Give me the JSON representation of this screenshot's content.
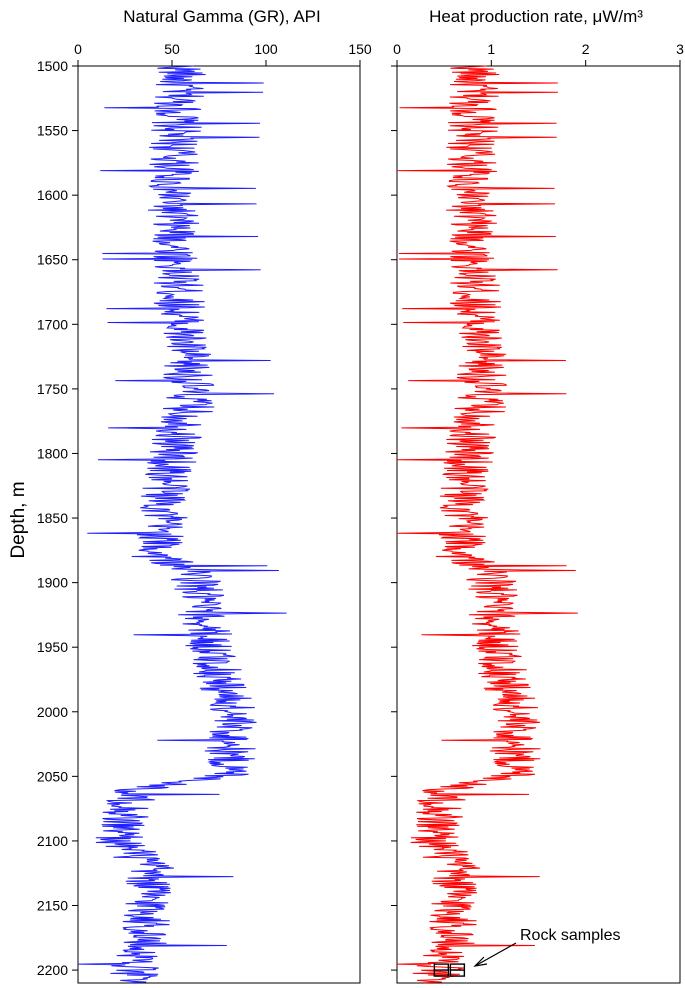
{
  "chart_data": [
    {
      "type": "line",
      "title": "Natural Gamma (GR), API",
      "ylabel": "Depth, m",
      "xlim": [
        0,
        150
      ],
      "ylim": [
        1500,
        2210
      ],
      "y_inverted": true,
      "x_axis_position": "top",
      "xticks": [
        "0",
        "50",
        "100",
        "150"
      ],
      "yticks": [
        "1500",
        "1550",
        "1600",
        "1650",
        "1700",
        "1750",
        "1800",
        "1850",
        "1900",
        "1950",
        "2000",
        "2050",
        "2100",
        "2150",
        "2200"
      ],
      "color": "#1f1fff",
      "series": [
        {
          "depth": [
            1500,
            1550,
            1600,
            1650,
            1700,
            1730,
            1760,
            1800,
            1850,
            1880,
            1890,
            1950,
            2000,
            2050,
            2060,
            2080,
            2100,
            2120,
            2150,
            2180,
            2200,
            2210
          ],
          "values": [
            55,
            52,
            50,
            52,
            55,
            58,
            60,
            50,
            45,
            42,
            62,
            70,
            82,
            80,
            32,
            25,
            22,
            38,
            38,
            35,
            30,
            28
          ]
        }
      ]
    },
    {
      "type": "line",
      "title": "Heat production rate, μW/m³",
      "xlim": [
        0,
        3
      ],
      "ylim": [
        1500,
        2210
      ],
      "y_inverted": true,
      "x_axis_position": "top",
      "xticks": [
        "0",
        "1",
        "2",
        "3"
      ],
      "color": "#ff0000",
      "series": [
        {
          "depth": [
            1500,
            1550,
            1600,
            1650,
            1700,
            1730,
            1760,
            1800,
            1850,
            1880,
            1890,
            1950,
            2000,
            2050,
            2060,
            2080,
            2100,
            2120,
            2150,
            2180,
            2200,
            2210
          ],
          "values": [
            0.82,
            0.8,
            0.78,
            0.8,
            0.85,
            0.9,
            0.9,
            0.75,
            0.7,
            0.68,
            1.0,
            1.05,
            1.25,
            1.25,
            0.52,
            0.45,
            0.4,
            0.62,
            0.62,
            0.58,
            0.45,
            0.3
          ]
        }
      ],
      "annotations": [
        {
          "text": "Rock samples",
          "depth": 2190,
          "x": 1.35
        },
        {
          "text": "",
          "samples": [
            {
              "depth": 2200,
              "x": 0.47
            },
            {
              "depth": 2200,
              "x": 0.64
            }
          ]
        }
      ]
    }
  ]
}
